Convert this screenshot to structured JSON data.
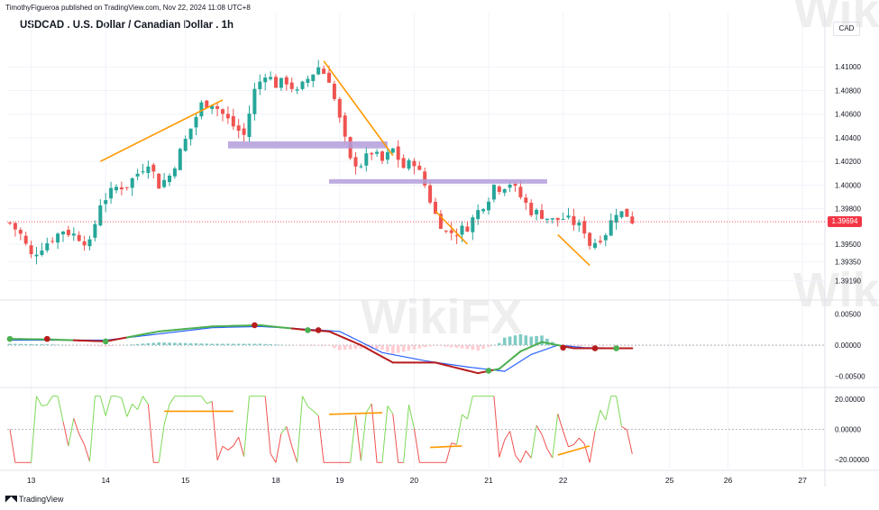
{
  "header": {
    "publisher": "TimothyFigueroa published on TradingView.com, Nov 22, 2024 11:08 UTC+8",
    "title": "USDCAD . U.S. Dollar / Canadian Dollar . 1h",
    "currency": "CAD",
    "brand": "TradingView",
    "watermark": "WikiFX"
  },
  "colors": {
    "up": "#26a69a",
    "down": "#ef5350",
    "orange": "#ff9800",
    "zone": "#b39ddb",
    "macd_green": "#4caf50",
    "macd_red": "#b71c1c",
    "signal_blue": "#2962ff",
    "rsi_green": "#7ed957",
    "rsi_red": "#ef5350",
    "price_tag": "#f23645"
  },
  "chart_data": {
    "type": "candlestick",
    "symbol": "USDCAD",
    "interval": "1h",
    "title": "USDCAD . U.S. Dollar / Canadian Dollar . 1h",
    "last_price": "1.39694",
    "price_axis": {
      "ticks": [
        "1.41000",
        "1.40800",
        "1.40600",
        "1.40400",
        "1.40200",
        "1.40000",
        "1.39800",
        "1.39500",
        "1.39350",
        "1.39190"
      ],
      "ylim": [
        1.3905,
        1.412
      ]
    },
    "x_axis_labels": [
      "13",
      "14",
      "15",
      "18",
      "19",
      "20",
      "21",
      "22",
      "25",
      "26",
      "27"
    ],
    "close_path": [
      [
        0,
        1.3968
      ],
      [
        2,
        1.3958
      ],
      [
        4,
        1.394
      ],
      [
        6,
        1.3948
      ],
      [
        8,
        1.3955
      ],
      [
        10,
        1.3962
      ],
      [
        13,
        1.3956
      ],
      [
        15,
        1.395
      ],
      [
        17,
        1.3985
      ],
      [
        20,
        1.3998
      ],
      [
        22,
        1.4
      ],
      [
        24,
        1.401
      ],
      [
        26,
        1.402
      ],
      [
        28,
        1.4
      ],
      [
        30,
        1.4008
      ],
      [
        32,
        1.4028
      ],
      [
        34,
        1.4048
      ],
      [
        36,
        1.4068
      ],
      [
        38,
        1.407
      ],
      [
        40,
        1.406
      ],
      [
        42,
        1.405
      ],
      [
        44,
        1.4042
      ],
      [
        46,
        1.408
      ],
      [
        48,
        1.4095
      ],
      [
        50,
        1.4085
      ],
      [
        52,
        1.4088
      ],
      [
        54,
        1.4078
      ],
      [
        56,
        1.409
      ],
      [
        58,
        1.41
      ],
      [
        60,
        1.409
      ],
      [
        62,
        1.4055
      ],
      [
        64,
        1.402
      ],
      [
        66,
        1.4018
      ],
      [
        68,
        1.4028
      ],
      [
        70,
        1.402
      ],
      [
        72,
        1.403
      ],
      [
        74,
        1.4015
      ],
      [
        76,
        1.402
      ],
      [
        78,
        1.4
      ],
      [
        80,
        1.3975
      ],
      [
        82,
        1.396
      ],
      [
        84,
        1.396
      ],
      [
        86,
        1.3965
      ],
      [
        88,
        1.3978
      ],
      [
        90,
        1.399
      ],
      [
        91,
        1.4
      ],
      [
        92,
        1.3998
      ],
      [
        94,
        1.4002
      ],
      [
        96,
        1.399
      ],
      [
        98,
        1.3978
      ],
      [
        100,
        1.3975
      ],
      [
        102,
        1.397
      ],
      [
        104,
        1.3972
      ],
      [
        106,
        1.3968
      ],
      [
        108,
        1.3962
      ],
      [
        109,
        1.395
      ],
      [
        110,
        1.3952
      ],
      [
        112,
        1.396
      ],
      [
        114,
        1.3978
      ],
      [
        116,
        1.3975
      ],
      [
        117,
        1.397
      ]
    ],
    "zones": [
      {
        "type": "resistance_box",
        "from": 1.4037,
        "to": 1.4031
      },
      {
        "type": "support_box",
        "from": 1.4005,
        "to": 1.4002
      }
    ],
    "trendlines": [
      {
        "from": [
          17,
          1.402
        ],
        "to": [
          40,
          1.4072
        ]
      },
      {
        "from": [
          59,
          1.4105
        ],
        "to": [
          72,
          1.4025
        ]
      },
      {
        "from": [
          80,
          1.3978
        ],
        "to": [
          86,
          1.395
        ]
      },
      {
        "from": [
          103,
          1.3958
        ],
        "to": [
          109,
          1.3932
        ]
      }
    ],
    "indicators": [
      {
        "name": "MACD",
        "ticks": [
          "0.00500",
          "0.00000",
          "−0.00500"
        ],
        "ylim": [
          -0.0065,
          0.0068
        ],
        "macd": [
          [
            0,
            0.001
          ],
          [
            8,
            0.0009
          ],
          [
            18,
            0.0006
          ],
          [
            28,
            0.0022
          ],
          [
            38,
            0.003
          ],
          [
            47,
            0.0032
          ],
          [
            55,
            0.0025
          ],
          [
            60,
            0.0022
          ],
          [
            66,
            0.0
          ],
          [
            72,
            -0.0028
          ],
          [
            80,
            -0.0028
          ],
          [
            88,
            -0.0045
          ],
          [
            92,
            -0.0038
          ],
          [
            96,
            -0.001
          ],
          [
            100,
            0.0005
          ],
          [
            106,
            -0.0005
          ],
          [
            117,
            -0.0005
          ]
        ],
        "signal": [
          [
            0,
            0.0008
          ],
          [
            8,
            0.0008
          ],
          [
            18,
            0.0008
          ],
          [
            28,
            0.0018
          ],
          [
            38,
            0.0028
          ],
          [
            47,
            0.003
          ],
          [
            55,
            0.0026
          ],
          [
            62,
            0.0022
          ],
          [
            70,
            -0.0012
          ],
          [
            78,
            -0.0025
          ],
          [
            86,
            -0.0035
          ],
          [
            93,
            -0.0042
          ],
          [
            98,
            -0.0015
          ],
          [
            103,
            0.0
          ],
          [
            108,
            -0.0004
          ],
          [
            117,
            -0.0005
          ]
        ],
        "crosses": [
          [
            0,
            0.001,
            "up"
          ],
          [
            7,
            0.001,
            "down"
          ],
          [
            18,
            0.0006,
            "up"
          ],
          [
            46,
            0.0032,
            "down"
          ],
          [
            56,
            0.0024,
            "up"
          ],
          [
            58,
            0.0024,
            "down"
          ],
          [
            90,
            -0.0041,
            "up"
          ],
          [
            104,
            -0.0004,
            "down"
          ],
          [
            110,
            -0.0005,
            "down"
          ],
          [
            114,
            -0.0005,
            "up"
          ]
        ]
      },
      {
        "name": "Oscillator",
        "ticks": [
          "20.00000",
          "0.00000",
          "−20.00000"
        ],
        "ylim": [
          -26,
          26
        ],
        "trendlines": [
          {
            "from": [
              29,
              12
            ],
            "to": [
              42,
              12
            ]
          },
          {
            "from": [
              60,
              10
            ],
            "to": [
              70,
              11
            ]
          },
          {
            "from": [
              79,
              -12
            ],
            "to": [
              85,
              -11
            ]
          },
          {
            "from": [
              103,
              -17
            ],
            "to": [
              109,
              -11
            ]
          }
        ]
      }
    ],
    "highlights": {
      "red_dotted_price": 1.3969
    }
  }
}
